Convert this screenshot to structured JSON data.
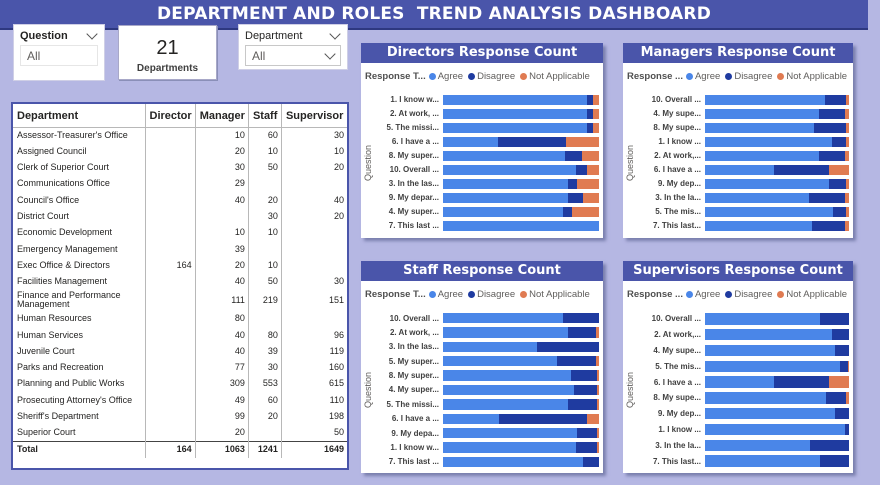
{
  "header": {
    "title": "DEPARTMENT AND ROLES  TREND ANALYSIS DASHBOARD"
  },
  "slicers": {
    "question": {
      "label": "Question",
      "value": "All"
    },
    "department": {
      "label": "Department",
      "value": "All"
    }
  },
  "card": {
    "value": "21",
    "label": "Departments"
  },
  "table": {
    "columns": [
      "Department",
      "Director",
      "Manager",
      "Staff",
      "Supervisor"
    ],
    "rows": [
      [
        "Assessor-Treasurer's Office",
        "",
        "10",
        "60",
        "30"
      ],
      [
        "Assigned Council",
        "",
        "20",
        "10",
        "10"
      ],
      [
        "Clerk of Superior Court",
        "",
        "30",
        "50",
        "20"
      ],
      [
        "Communications Office",
        "",
        "29",
        "",
        ""
      ],
      [
        "Council's Office",
        "",
        "40",
        "20",
        "40"
      ],
      [
        "District Court",
        "",
        "",
        "30",
        "20"
      ],
      [
        "Economic Development",
        "",
        "10",
        "10",
        ""
      ],
      [
        "Emergency Management",
        "",
        "39",
        "",
        ""
      ],
      [
        "Exec Office & Directors",
        "164",
        "20",
        "10",
        ""
      ],
      [
        "Facilities Management",
        "",
        "40",
        "50",
        "30"
      ],
      [
        "Finance and Performance Management",
        "",
        "111",
        "219",
        "151"
      ],
      [
        "Human Resources",
        "",
        "80",
        "",
        ""
      ],
      [
        "Human Services",
        "",
        "40",
        "80",
        "96"
      ],
      [
        "Juvenile Court",
        "",
        "40",
        "39",
        "119"
      ],
      [
        "Parks and Recreation",
        "",
        "77",
        "30",
        "160"
      ],
      [
        "Planning and Public Works",
        "",
        "309",
        "553",
        "615"
      ],
      [
        "Prosecuting Attorney's Office",
        "",
        "49",
        "60",
        "110"
      ],
      [
        "Sheriff's Department",
        "",
        "99",
        "20",
        "198"
      ],
      [
        "Superior Court",
        "",
        "20",
        "",
        "50"
      ]
    ],
    "total": [
      "Total",
      "164",
      "1063",
      "1241",
      "1649"
    ]
  },
  "legend": {
    "title_full": "Response T...",
    "title_short": "Response ...",
    "items": [
      {
        "name": "Agree",
        "color": "#4a86e8"
      },
      {
        "name": "Disagree",
        "color": "#1f3ba0"
      },
      {
        "name": "Not Applicable",
        "color": "#e07b52"
      }
    ],
    "axis_label": "Question"
  },
  "chart_data": [
    {
      "type": "bar",
      "title": "Directors Response Count",
      "ylabel": "Question",
      "categories": [
        "1. I know w...",
        "2. At work, ...",
        "5. The missi...",
        "6. I have a ...",
        "8. My super...",
        "10. Overall ...",
        "3. In the las...",
        "9. My depar...",
        "4. My super...",
        "7. This last ..."
      ],
      "series": [
        {
          "name": "Agree",
          "values": [
            92,
            92,
            92,
            35,
            78,
            85,
            80,
            80,
            77,
            100
          ]
        },
        {
          "name": "Disagree",
          "values": [
            4,
            4,
            4,
            44,
            11,
            7,
            6,
            10,
            6,
            0
          ]
        },
        {
          "name": "Not Applicable",
          "values": [
            4,
            4,
            4,
            21,
            11,
            8,
            14,
            10,
            17,
            0
          ]
        }
      ]
    },
    {
      "type": "bar",
      "title": "Managers Response Count",
      "ylabel": "Question",
      "categories": [
        "10. Overall ...",
        "4. My supe...",
        "8. My supe...",
        "1. I know ...",
        "2. At work,...",
        "6. I have a ...",
        "9. My dep...",
        "3. In the la...",
        "5. The mis...",
        "7. This last..."
      ],
      "series": [
        {
          "name": "Agree",
          "values": [
            83,
            79,
            76,
            88,
            79,
            48,
            86,
            72,
            89,
            74
          ]
        },
        {
          "name": "Disagree",
          "values": [
            15,
            18,
            22,
            10,
            18,
            38,
            12,
            25,
            9,
            23
          ]
        },
        {
          "name": "Not Applicable",
          "values": [
            2,
            3,
            2,
            2,
            3,
            14,
            2,
            3,
            2,
            3
          ]
        }
      ]
    },
    {
      "type": "bar",
      "title": "Staff Response Count",
      "ylabel": "Question",
      "categories": [
        "10. Overall ...",
        "2. At work, ...",
        "3. In the las...",
        "5. My super...",
        "8. My super...",
        "4. My super...",
        "5. The missi...",
        "6. I have a ...",
        "9. My depa...",
        "1. I know w...",
        "7. This last ..."
      ],
      "series": [
        {
          "name": "Agree",
          "values": [
            77,
            80,
            60,
            73,
            82,
            84,
            80,
            36,
            86,
            85,
            90
          ]
        },
        {
          "name": "Disagree",
          "values": [
            23,
            18,
            40,
            25,
            17,
            15,
            19,
            56,
            13,
            14,
            10
          ]
        },
        {
          "name": "Not Applicable",
          "values": [
            0,
            2,
            0,
            2,
            1,
            1,
            1,
            8,
            1,
            1,
            0
          ]
        }
      ]
    },
    {
      "type": "bar",
      "title": "Supervisors Response Count",
      "ylabel": "Question",
      "categories": [
        "10. Overall ...",
        "2. At work,...",
        "4. My supe...",
        "5. The mis...",
        "6. I have a ...",
        "8. My supe...",
        "9. My dep...",
        "1. I know ...",
        "3. In the la...",
        "7. This last..."
      ],
      "series": [
        {
          "name": "Agree",
          "values": [
            80,
            88,
            90,
            94,
            48,
            84,
            90,
            97,
            73,
            80
          ]
        },
        {
          "name": "Disagree",
          "values": [
            20,
            12,
            10,
            5,
            38,
            14,
            10,
            3,
            27,
            20
          ]
        },
        {
          "name": "Not Applicable",
          "values": [
            0,
            0,
            0,
            1,
            14,
            2,
            0,
            0,
            0,
            0
          ]
        }
      ]
    }
  ]
}
